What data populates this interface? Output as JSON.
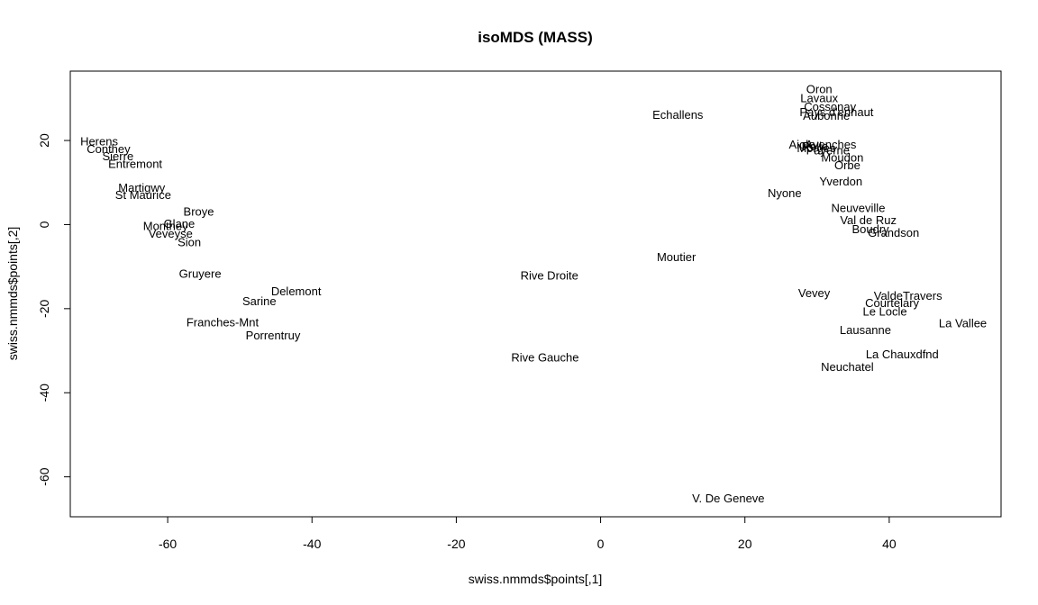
{
  "chart_data": {
    "type": "scatter",
    "title": "isoMDS (MASS)",
    "xlabel": "swiss.nmmds$points[,1]",
    "ylabel": "swiss.nmmds$points[,2]",
    "xlim": [
      -73.5,
      55.5
    ],
    "ylim": [
      -69.5,
      36.5
    ],
    "xticks": [
      -60,
      -40,
      -20,
      0,
      20,
      40
    ],
    "yticks": [
      -60,
      -40,
      -20,
      0,
      20
    ],
    "xtick_labels": [
      "-60",
      "-40",
      "-20",
      "0",
      "20",
      "40"
    ],
    "ytick_labels": [
      "-60",
      "-40",
      "-20",
      "0",
      "20"
    ],
    "grid": false,
    "points": [
      {
        "label": "Oron",
        "x": 30.3,
        "y": 32.2
      },
      {
        "label": "Lavaux",
        "x": 30.3,
        "y": 30.1
      },
      {
        "label": "Cossonay",
        "x": 31.8,
        "y": 28.0
      },
      {
        "label": "Pays d'enhaut",
        "x": 32.7,
        "y": 26.8
      },
      {
        "label": "Aubonne",
        "x": 31.3,
        "y": 25.9
      },
      {
        "label": "Echallens",
        "x": 10.7,
        "y": 26.1
      },
      {
        "label": "Herens",
        "x": -69.5,
        "y": 19.8
      },
      {
        "label": "Conthey",
        "x": -68.2,
        "y": 18.0
      },
      {
        "label": "Sierre",
        "x": -66.9,
        "y": 16.3
      },
      {
        "label": "Entremont",
        "x": -64.5,
        "y": 14.4
      },
      {
        "label": "Aigle",
        "x": 27.9,
        "y": 19.0
      },
      {
        "label": "Avenches",
        "x": 31.9,
        "y": 19.0
      },
      {
        "label": "Rolle",
        "x": 29.7,
        "y": 18.6
      },
      {
        "label": "Morges",
        "x": 29.9,
        "y": 18.2
      },
      {
        "label": "Payerne",
        "x": 31.5,
        "y": 17.7
      },
      {
        "label": "Moudon",
        "x": 33.5,
        "y": 15.9
      },
      {
        "label": "Orbe",
        "x": 34.2,
        "y": 14.1
      },
      {
        "label": "Yverdon",
        "x": 33.3,
        "y": 10.3
      },
      {
        "label": "Nyone",
        "x": 25.5,
        "y": 7.5
      },
      {
        "label": "Martigwy",
        "x": -63.6,
        "y": 8.8
      },
      {
        "label": "St Maurice",
        "x": -63.4,
        "y": 7.1
      },
      {
        "label": "Neuveville",
        "x": 35.7,
        "y": 3.9
      },
      {
        "label": "Broye",
        "x": -55.7,
        "y": 3.1
      },
      {
        "label": "Val de Ruz",
        "x": 37.1,
        "y": 1.1
      },
      {
        "label": "Glane",
        "x": -58.4,
        "y": 0.2
      },
      {
        "label": "Monthey",
        "x": -60.3,
        "y": -0.3
      },
      {
        "label": "Boudry",
        "x": 37.4,
        "y": -1.1
      },
      {
        "label": "Grandson",
        "x": 40.6,
        "y": -1.9
      },
      {
        "label": "Veveyse",
        "x": -59.6,
        "y": -2.1
      },
      {
        "label": "Sion",
        "x": -57.0,
        "y": -4.2
      },
      {
        "label": "Moutier",
        "x": 10.5,
        "y": -7.7
      },
      {
        "label": "Rive Droite",
        "x": -7.1,
        "y": -12.1
      },
      {
        "label": "Gruyere",
        "x": -55.5,
        "y": -11.7
      },
      {
        "label": "Delemont",
        "x": -42.2,
        "y": -15.9
      },
      {
        "label": "Vevey",
        "x": 29.6,
        "y": -16.3
      },
      {
        "label": "ValdeTravers",
        "x": 42.6,
        "y": -16.9
      },
      {
        "label": "Sarine",
        "x": -47.3,
        "y": -18.2
      },
      {
        "label": "Courtelary",
        "x": 40.4,
        "y": -18.6
      },
      {
        "label": "Le Locle",
        "x": 39.4,
        "y": -20.7
      },
      {
        "label": "Franches-Mnt",
        "x": -52.4,
        "y": -23.2
      },
      {
        "label": "La Vallee",
        "x": 50.2,
        "y": -23.5
      },
      {
        "label": "Lausanne",
        "x": 36.7,
        "y": -25.1
      },
      {
        "label": "Porrentruy",
        "x": -45.4,
        "y": -26.3
      },
      {
        "label": "La Chauxdfnd",
        "x": 41.8,
        "y": -30.8
      },
      {
        "label": "Rive Gauche",
        "x": -7.7,
        "y": -31.6
      },
      {
        "label": "Neuchatel",
        "x": 34.2,
        "y": -33.8
      },
      {
        "label": "V. De Geneve",
        "x": 17.7,
        "y": -65.1
      }
    ]
  }
}
